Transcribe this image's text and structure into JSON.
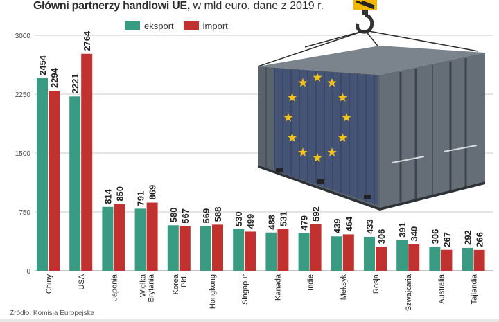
{
  "header": {
    "title_bold": "Główni partnerzy handlowi UE,",
    "title_rest": " w mld euro, dane z 2019 r."
  },
  "legend": {
    "export_label": "eksport",
    "import_label": "import"
  },
  "source": "Źródło: Komisja Europejska",
  "colors": {
    "export": "#3a9b83",
    "import": "#c0312f",
    "grid": "#c9c9c9",
    "container": "#5e6670",
    "eu_flag": "#1f3a8a",
    "star": "#f2c21a",
    "hook": "#f2b705"
  },
  "chart_data": {
    "type": "bar",
    "title": "Główni partnerzy handlowi UE, w mld euro, dane z 2019 r.",
    "xlabel": "",
    "ylabel": "",
    "ylim": [
      0,
      3000
    ],
    "yticks": [
      0,
      750,
      1500,
      2250,
      3000
    ],
    "grid": true,
    "legend_position": "top",
    "categories": [
      "Chiny",
      "USA",
      "Japonia",
      "Wielka Brytania",
      "Korea Płd.",
      "Hongkong",
      "Singapur",
      "Kanada",
      "Indie",
      "Meksyk",
      "Rosja",
      "Szwajcaria",
      "Australia",
      "Tajlandia"
    ],
    "category_lines": [
      [
        "Chiny"
      ],
      [
        "USA"
      ],
      [
        "Japonia"
      ],
      [
        "Wielka",
        "Brytania"
      ],
      [
        "Korea",
        "Płd."
      ],
      [
        "Hongkong"
      ],
      [
        "Singapur"
      ],
      [
        "Kanada"
      ],
      [
        "Indie"
      ],
      [
        "Meksyk"
      ],
      [
        "Rosja"
      ],
      [
        "Szwajcaria"
      ],
      [
        "Australia"
      ],
      [
        "Tajlandia"
      ]
    ],
    "series": [
      {
        "name": "eksport",
        "values": [
          2454,
          2221,
          814,
          791,
          580,
          569,
          530,
          488,
          479,
          439,
          433,
          391,
          306,
          292
        ]
      },
      {
        "name": "import",
        "values": [
          2294,
          2764,
          850,
          869,
          567,
          588,
          499,
          531,
          592,
          464,
          306,
          340,
          267,
          266
        ]
      }
    ]
  }
}
